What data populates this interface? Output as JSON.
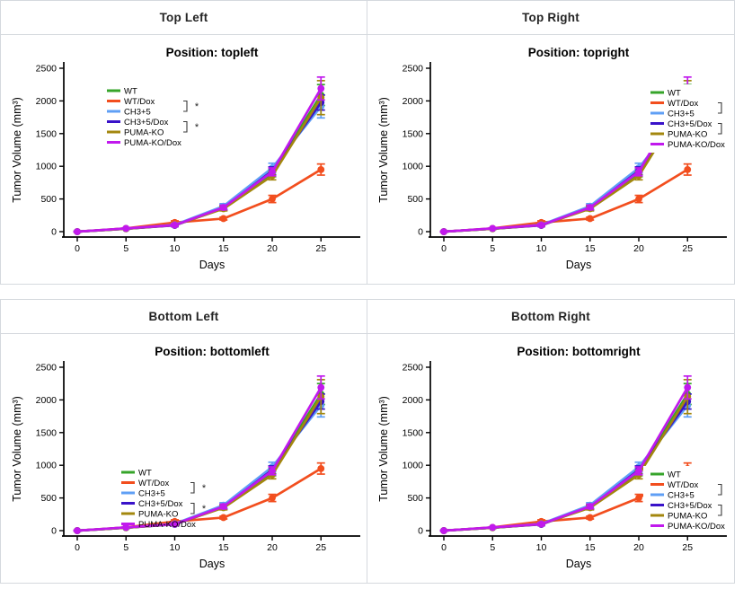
{
  "chart_data": {
    "type": "line",
    "x": [
      0,
      5,
      10,
      15,
      20,
      25
    ],
    "xlabel": "Days",
    "ylabel": "Tumor Volume (mm³)",
    "xticks": [
      0,
      5,
      10,
      15,
      20,
      25
    ],
    "yticks": [
      0,
      500,
      1000,
      1500,
      2000,
      2500
    ],
    "ylim": [
      0,
      2600
    ],
    "grid": false,
    "series": [
      {
        "name": "WT",
        "color": "#36a42a",
        "values": [
          0,
          45,
          100,
          370,
          900,
          2090
        ],
        "errors": [
          3,
          8,
          18,
          35,
          60,
          160
        ]
      },
      {
        "name": "WT/Dox",
        "color": "#f24e1e",
        "values": [
          0,
          50,
          140,
          200,
          500,
          950
        ],
        "errors": [
          3,
          8,
          25,
          22,
          55,
          85
        ]
      },
      {
        "name": "CH3+5",
        "color": "#5f9ff5",
        "values": [
          0,
          45,
          105,
          390,
          975,
          1915
        ],
        "errors": [
          3,
          8,
          18,
          38,
          72,
          175
        ]
      },
      {
        "name": "CH3+5/Dox",
        "color": "#3912c9",
        "values": [
          0,
          45,
          95,
          360,
          930,
          1975
        ],
        "errors": [
          3,
          8,
          18,
          35,
          60,
          115
        ]
      },
      {
        "name": "PUMA-KO",
        "color": "#a3870e",
        "values": [
          0,
          45,
          100,
          350,
          855,
          2050
        ],
        "errors": [
          3,
          8,
          18,
          32,
          62,
          260
        ]
      },
      {
        "name": "PUMA-KO/Dox",
        "color": "#c119ed",
        "values": [
          0,
          50,
          100,
          370,
          915,
          2190
        ],
        "errors": [
          3,
          8,
          20,
          35,
          60,
          175
        ]
      }
    ],
    "significance": [
      {
        "between": [
          "WT/Dox",
          "CH3+5"
        ],
        "label": "*"
      },
      {
        "between": [
          "CH3+5/Dox",
          "PUMA-KO"
        ],
        "label": "*"
      }
    ],
    "panels": [
      {
        "header": "Top Left",
        "title": "Position: topleft",
        "legend_position": "topleft",
        "legend_opaque": true,
        "sig_asterisk_visible": true
      },
      {
        "header": "Top Right",
        "title": "Position: topright",
        "legend_position": "topright",
        "legend_opaque": true,
        "sig_asterisk_visible": false
      },
      {
        "header": "Bottom Left",
        "title": "Position: bottomleft",
        "legend_position": "bottomleft",
        "legend_opaque": false,
        "sig_asterisk_visible": true
      },
      {
        "header": "Bottom Right",
        "title": "Position: bottomright",
        "legend_position": "bottomright",
        "legend_opaque": true,
        "sig_asterisk_visible": false
      }
    ]
  }
}
